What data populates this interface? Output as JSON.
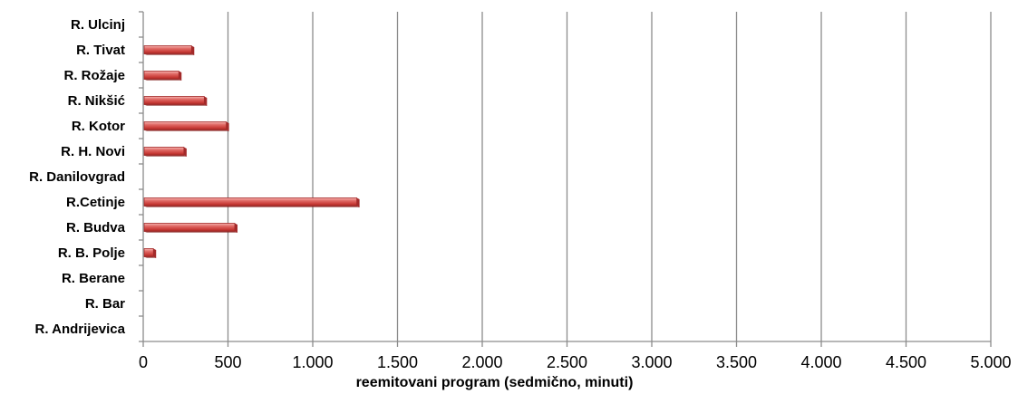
{
  "chart_data": {
    "type": "bar",
    "orientation": "horizontal",
    "categories": [
      "R. Andrijevica",
      "R. Bar",
      "R. Berane",
      "R. B. Polje",
      "R. Budva",
      "R.Cetinje",
      "R. Danilovgrad",
      "R. H. Novi",
      "R. Kotor",
      "R. Nikšić",
      "R. Rožaje",
      "R. Tivat",
      "R. Ulcinj"
    ],
    "values": [
      0,
      0,
      0,
      60,
      540,
      1260,
      0,
      240,
      490,
      360,
      210,
      285,
      0
    ],
    "xlabel": "reemitovani program (sedmično, minuti)",
    "ylabel": "",
    "xlim": [
      0,
      5000
    ],
    "x_ticks": [
      0,
      500,
      1000,
      1500,
      2000,
      2500,
      3000,
      3500,
      4000,
      4500,
      5000
    ],
    "x_tick_labels": [
      "0",
      "500",
      "1.000",
      "1.500",
      "2.000",
      "2.500",
      "3.000",
      "3.500",
      "4.000",
      "4.500",
      "5.000"
    ],
    "grid": "vertical",
    "legend": "none",
    "colors": {
      "bar": "#d9534f",
      "bar_dark": "#a32a2a",
      "bar_light": "#f4a3a0",
      "grid": "#8c8c8c"
    }
  }
}
